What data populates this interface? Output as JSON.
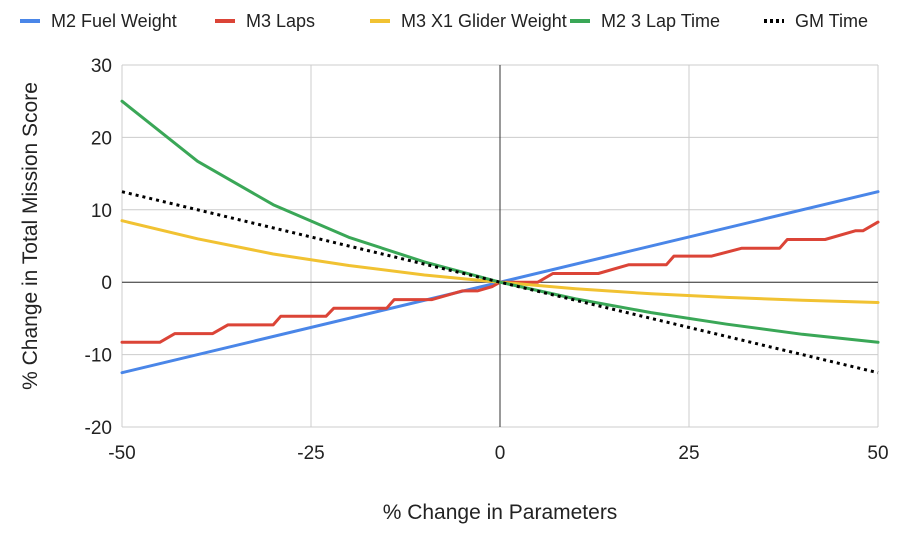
{
  "chart_data": {
    "type": "line",
    "title": "",
    "xlabel": "% Change in Parameters",
    "ylabel": "% Change in Total Mission Score",
    "xlim": [
      -50,
      50
    ],
    "ylim": [
      -20,
      30
    ],
    "xticks": [
      "-50",
      "-25",
      "0",
      "25",
      "50"
    ],
    "yticks": [
      "30",
      "20",
      "10",
      "0",
      "-10",
      "-20"
    ],
    "grid": true,
    "legend_position": "top",
    "series": [
      {
        "name": "M2 Fuel Weight",
        "color": "#4a86e8",
        "dash": "solid",
        "x": [
          -50,
          50
        ],
        "y": [
          -12.5,
          12.5
        ]
      },
      {
        "name": "M3 Laps",
        "color": "#db4437",
        "dash": "solid",
        "x": [
          -50,
          -45,
          -43,
          -38,
          -36,
          -30,
          -29,
          -23,
          -22,
          -15,
          -14,
          -10,
          -9,
          -5,
          -3,
          -1,
          0,
          2,
          5,
          7,
          8,
          12,
          13,
          17,
          18,
          22,
          23,
          27,
          28,
          32,
          33,
          37,
          38,
          42,
          43,
          47,
          48,
          50
        ],
        "y": [
          -8.3,
          -8.3,
          -7.1,
          -7.1,
          -5.9,
          -5.9,
          -4.7,
          -4.7,
          -3.6,
          -3.6,
          -2.4,
          -2.4,
          -2.4,
          -1.2,
          -1.2,
          -0.6,
          0,
          0,
          0,
          1.2,
          1.2,
          1.2,
          1.2,
          2.4,
          2.4,
          2.4,
          3.6,
          3.6,
          3.6,
          4.7,
          4.7,
          4.7,
          5.9,
          5.9,
          5.9,
          7.1,
          7.1,
          8.3
        ]
      },
      {
        "name": "M3 X1 Glider Weight",
        "color": "#f1c232",
        "dash": "solid",
        "x": [
          -50,
          -40,
          -30,
          -20,
          -10,
          0,
          10,
          20,
          30,
          40,
          50
        ],
        "y": [
          8.5,
          6.0,
          3.9,
          2.3,
          1.0,
          0,
          -0.9,
          -1.6,
          -2.1,
          -2.5,
          -2.8
        ]
      },
      {
        "name": "M2 3 Lap Time",
        "color": "#3aa757",
        "dash": "solid",
        "x": [
          -50,
          -40,
          -30,
          -20,
          -10,
          0,
          10,
          20,
          30,
          40,
          50
        ],
        "y": [
          25,
          16.7,
          10.7,
          6.2,
          2.8,
          0,
          -2.3,
          -4.2,
          -5.8,
          -7.2,
          -8.3
        ]
      },
      {
        "name": "GM Time",
        "color": "#000000",
        "dash": "dotted",
        "x": [
          -50,
          50
        ],
        "y": [
          12.5,
          -12.5
        ]
      }
    ]
  }
}
